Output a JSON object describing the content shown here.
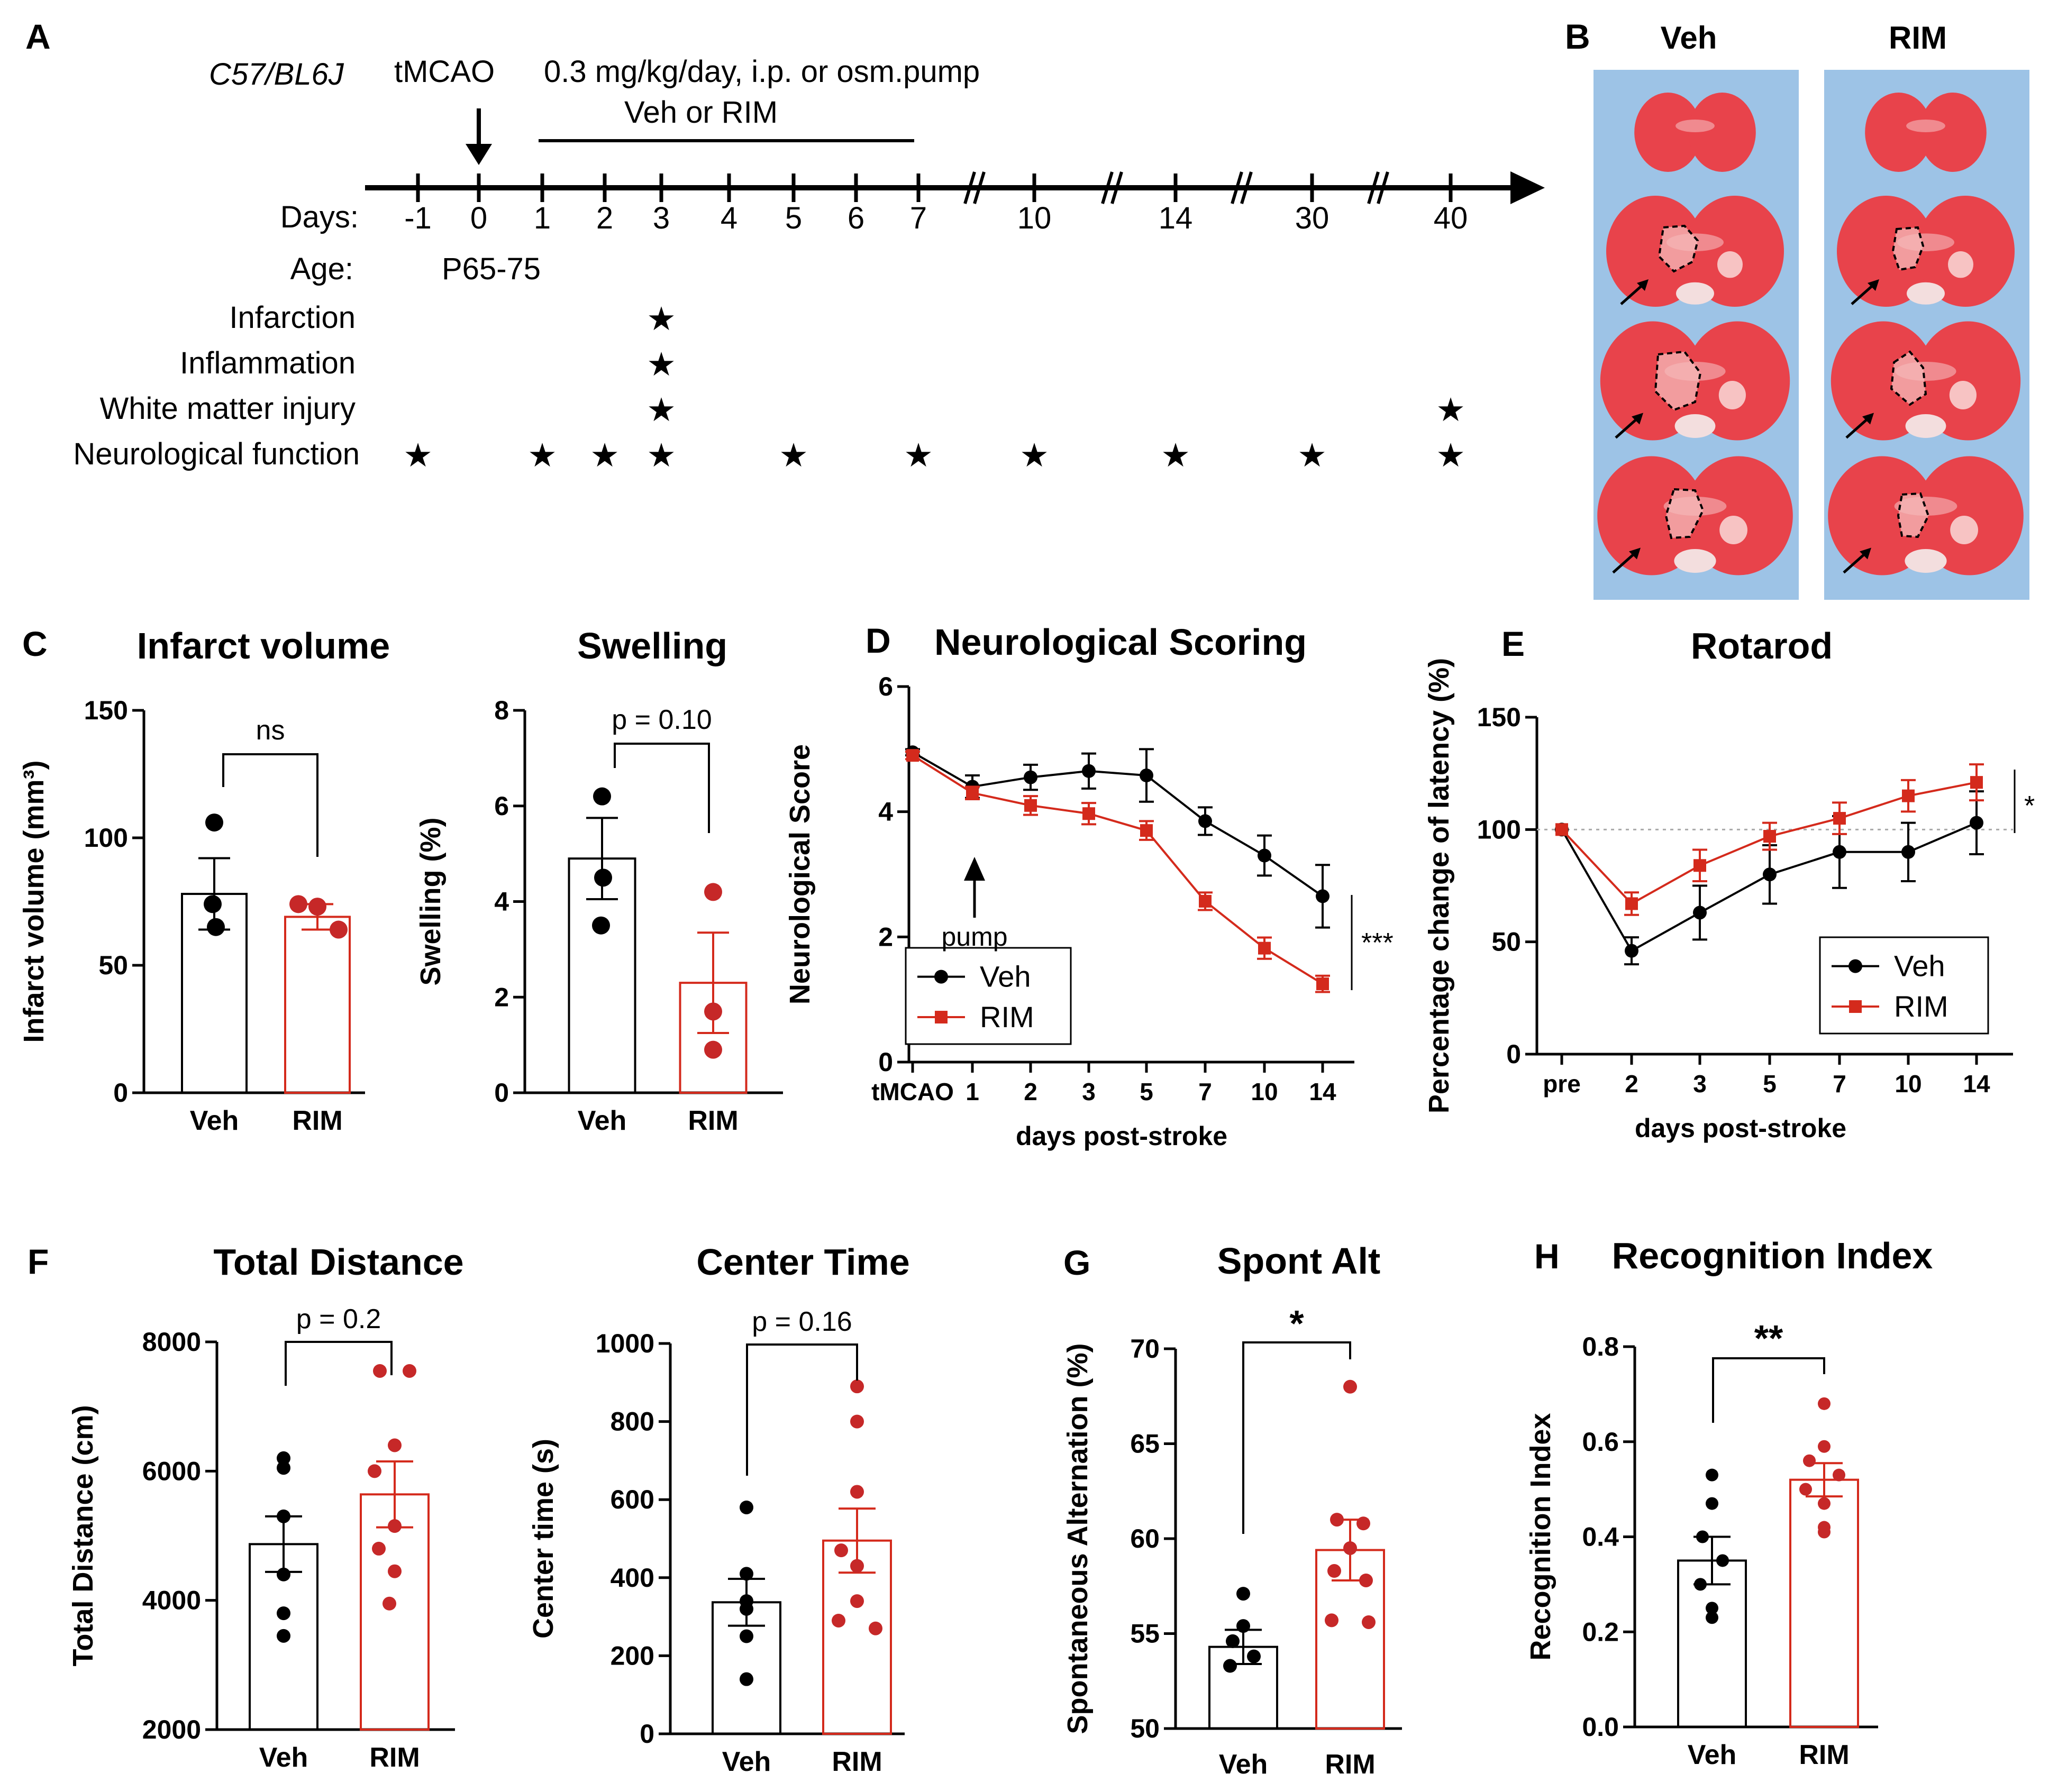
{
  "labels": {
    "A": "A",
    "B": "B",
    "C": "C",
    "D": "D",
    "E": "E",
    "F": "F",
    "G": "G",
    "H": "H"
  },
  "colors": {
    "veh": "#000000",
    "rim": "#d42a1c",
    "dot_rim": "#c62828",
    "dot_rim_dark": "#8b1a1a",
    "slide_bg": "#9dc3e6",
    "brain": "#e8434b",
    "brain_light": "#f7c3c3"
  },
  "timeline": {
    "strain": "C57/BL6J",
    "tmcao": "tMCAO",
    "treatment_line1": "0.3 mg/kg/day, i.p. or osm.pump",
    "treatment_line2": "Veh or RIM",
    "days_label": "Days:",
    "days": [
      "-1",
      "0",
      "1",
      "2",
      "3",
      "4",
      "5",
      "6",
      "7",
      "10",
      "14",
      "30",
      "40"
    ],
    "age_label": "Age:",
    "age": "P65-75",
    "star": "★",
    "rows": [
      {
        "label": "Infarction",
        "days": [
          "3"
        ]
      },
      {
        "label": "Inflammation",
        "days": [
          "3"
        ]
      },
      {
        "label": "White matter injury",
        "days": [
          "3",
          "40"
        ]
      },
      {
        "label": "Neurological function",
        "days": [
          "-1",
          "1",
          "2",
          "3",
          "5",
          "7",
          "10",
          "14",
          "30",
          "40"
        ]
      }
    ]
  },
  "brains": {
    "veh": "Veh",
    "rim": "RIM"
  },
  "chart_data": [
    {
      "id": "infarct",
      "type": "bar",
      "title": "Infarct volume",
      "ylabel": "Infarct volume (mm³)",
      "categories": [
        "Veh",
        "RIM"
      ],
      "values": [
        78,
        69
      ],
      "errors": [
        14,
        5
      ],
      "points": [
        [
          106,
          74,
          65
        ],
        [
          74,
          73,
          64
        ]
      ],
      "ylim": [
        0,
        150
      ],
      "yticks": [
        "0",
        "50",
        "100",
        "150"
      ],
      "sig": "ns"
    },
    {
      "id": "swelling",
      "type": "bar",
      "title": "Swelling",
      "ylabel": "Swelling (%)",
      "categories": [
        "Veh",
        "RIM"
      ],
      "values": [
        4.9,
        2.3
      ],
      "errors": [
        0.85,
        1.05
      ],
      "points": [
        [
          6.2,
          4.5,
          3.5
        ],
        [
          4.2,
          1.7,
          0.9
        ]
      ],
      "ylim": [
        0,
        8
      ],
      "yticks": [
        "0",
        "2",
        "4",
        "6",
        "8"
      ],
      "sig": "p = 0.10"
    },
    {
      "id": "neuro",
      "type": "line",
      "title": "Neurological Scoring",
      "xlabel": "days post-stroke",
      "ylabel": "Neurological Score",
      "categories": [
        "tMCAO",
        "1",
        "2",
        "3",
        "5",
        "7",
        "10",
        "14"
      ],
      "series": [
        {
          "name": "Veh",
          "values": [
            4.95,
            4.4,
            4.55,
            4.65,
            4.58,
            3.85,
            3.3,
            2.65
          ],
          "errors": [
            0.05,
            0.18,
            0.2,
            0.28,
            0.42,
            0.22,
            0.32,
            0.5
          ]
        },
        {
          "name": "RIM",
          "values": [
            4.9,
            4.3,
            4.1,
            3.97,
            3.7,
            2.57,
            1.82,
            1.25
          ],
          "errors": [
            0.06,
            0.1,
            0.15,
            0.17,
            0.15,
            0.14,
            0.17,
            0.13
          ]
        }
      ],
      "ylim": [
        0,
        6
      ],
      "yticks": [
        "0",
        "2",
        "4",
        "6"
      ],
      "annotation": "pump",
      "sig": "***"
    },
    {
      "id": "rotarod",
      "type": "line",
      "title": "Rotarod",
      "xlabel": "days post-stroke",
      "ylabel": "Percentage change of latency (%)",
      "categories": [
        "pre",
        "2",
        "3",
        "5",
        "7",
        "10",
        "14"
      ],
      "series": [
        {
          "name": "Veh",
          "values": [
            100,
            46,
            63,
            80,
            90,
            90,
            103
          ],
          "errors": [
            0,
            6,
            12,
            13,
            16,
            13,
            14
          ]
        },
        {
          "name": "RIM",
          "values": [
            100,
            67,
            84,
            97,
            105,
            115,
            121
          ],
          "errors": [
            0,
            5,
            7,
            6,
            7,
            7,
            8
          ]
        }
      ],
      "ylim": [
        0,
        150
      ],
      "yticks": [
        "0",
        "50",
        "100",
        "150"
      ],
      "reference_line": 100,
      "sig": "*"
    },
    {
      "id": "distance",
      "type": "bar",
      "title": "Total Distance",
      "ylabel": "Total Distance (cm)",
      "categories": [
        "Veh",
        "RIM"
      ],
      "values": [
        4870,
        5640
      ],
      "errors": [
        430,
        510
      ],
      "points": [
        [
          6200,
          6050,
          5300,
          4400,
          3800,
          3450
        ],
        [
          7550,
          7550,
          6400,
          6000,
          5150,
          4800,
          4450,
          3950
        ]
      ],
      "ylim": [
        2000,
        8000
      ],
      "yticks": [
        "2000",
        "4000",
        "6000",
        "8000"
      ],
      "sig": "p = 0.2"
    },
    {
      "id": "center",
      "type": "bar",
      "title": "Center Time",
      "ylabel": "Center time (s)",
      "categories": [
        "Veh",
        "RIM"
      ],
      "values": [
        337,
        495
      ],
      "errors": [
        60,
        82
      ],
      "points": [
        [
          580,
          410,
          340,
          320,
          250,
          140
        ],
        [
          890,
          800,
          620,
          470,
          430,
          340,
          290,
          270
        ]
      ],
      "ylim": [
        0,
        1000
      ],
      "yticks": [
        "0",
        "200",
        "400",
        "600",
        "800",
        "1000"
      ],
      "sig": "p = 0.16"
    },
    {
      "id": "spontalt",
      "type": "bar",
      "title": "Spont Alt",
      "ylabel": "Spontaneous Alternation (%)",
      "categories": [
        "Veh",
        "RIM"
      ],
      "values": [
        54.3,
        59.4
      ],
      "errors": [
        0.9,
        1.6
      ],
      "points": [
        [
          57.1,
          55.4,
          54.6,
          53.8,
          53.3
        ],
        [
          68,
          61,
          60.8,
          59.5,
          58.3,
          57.8,
          55.7,
          55.6
        ]
      ],
      "ylim": [
        50,
        70
      ],
      "yticks": [
        "50",
        "55",
        "60",
        "65",
        "70"
      ],
      "sig": "*"
    },
    {
      "id": "recog",
      "type": "bar",
      "title": "Recognition Index",
      "ylabel": "Recognition Index",
      "categories": [
        "Veh",
        "RIM"
      ],
      "values": [
        0.35,
        0.52
      ],
      "errors": [
        0.05,
        0.035
      ],
      "points": [
        [
          0.53,
          0.47,
          0.4,
          0.35,
          0.3,
          0.25,
          0.23
        ],
        [
          0.68,
          0.59,
          0.56,
          0.53,
          0.5,
          0.47,
          0.42,
          0.41
        ]
      ],
      "ylim": [
        0,
        0.8
      ],
      "yticks": [
        "0.0",
        "0.2",
        "0.4",
        "0.6",
        "0.8"
      ],
      "sig": "**"
    }
  ]
}
